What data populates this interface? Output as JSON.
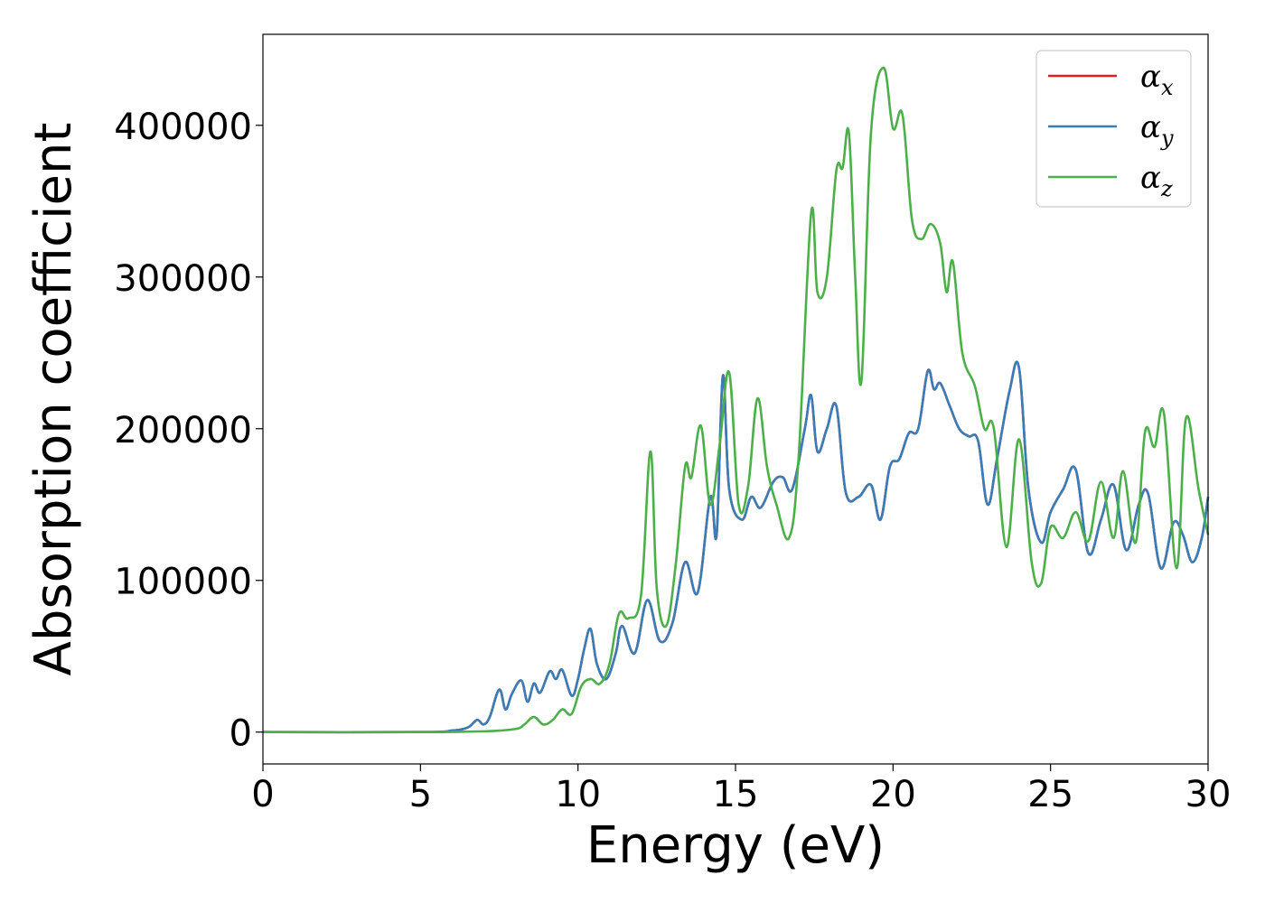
{
  "chart_data": {
    "type": "line",
    "xlabel": "Energy (eV)",
    "ylabel": "Absorption coefficient",
    "xlim": [
      0,
      30
    ],
    "ylim": [
      -21000,
      460000
    ],
    "xticks": [
      0,
      5,
      10,
      15,
      20,
      25,
      30
    ],
    "yticks": [
      0,
      100000,
      200000,
      300000,
      400000
    ],
    "grid": false,
    "legend_position": "top-right",
    "series": [
      {
        "name": "α",
        "subscript": "x",
        "color": "#e41a1c",
        "x": [
          0,
          5,
          6.0,
          6.5,
          6.8,
          7.0,
          7.2,
          7.5,
          7.7,
          7.9,
          8.2,
          8.4,
          8.6,
          8.8,
          9.1,
          9.3,
          9.5,
          9.8,
          10.0,
          10.2,
          10.4,
          10.6,
          10.9,
          11.2,
          11.4,
          11.8,
          12.2,
          12.6,
          13.0,
          13.4,
          13.8,
          14.2,
          14.4,
          14.6,
          14.8,
          15.2,
          15.5,
          15.8,
          16.2,
          16.5,
          16.8,
          17.2,
          17.4,
          17.6,
          17.9,
          18.2,
          18.5,
          18.9,
          19.3,
          19.6,
          19.9,
          20.2,
          20.5,
          20.8,
          21.1,
          21.3,
          21.5,
          21.8,
          22.1,
          22.4,
          22.7,
          23.0,
          23.3,
          23.7,
          24.0,
          24.3,
          24.7,
          25.0,
          25.4,
          25.8,
          26.2,
          26.6,
          27.0,
          27.4,
          27.8,
          28.1,
          28.5,
          28.9,
          29.2,
          29.5,
          29.8,
          30
        ],
        "y": [
          0,
          0,
          1000,
          3000,
          8000,
          5000,
          10000,
          28000,
          15000,
          25000,
          34000,
          20000,
          32000,
          26000,
          40000,
          35000,
          41000,
          24000,
          35000,
          55000,
          68000,
          45000,
          35000,
          52000,
          70000,
          52000,
          87000,
          60000,
          72000,
          112000,
          92000,
          155000,
          130000,
          235000,
          160000,
          140000,
          155000,
          148000,
          165000,
          168000,
          160000,
          200000,
          222000,
          185000,
          200000,
          215000,
          158000,
          155000,
          163000,
          140000,
          175000,
          180000,
          197000,
          200000,
          238000,
          226000,
          230000,
          215000,
          200000,
          195000,
          192000,
          150000,
          180000,
          225000,
          240000,
          160000,
          125000,
          145000,
          160000,
          173000,
          118000,
          140000,
          163000,
          120000,
          150000,
          157000,
          108000,
          138000,
          130000,
          112000,
          128000,
          155000
        ]
      },
      {
        "name": "α",
        "subscript": "y",
        "color": "#377eb8",
        "x": [
          0,
          5,
          6.0,
          6.5,
          6.8,
          7.0,
          7.2,
          7.5,
          7.7,
          7.9,
          8.2,
          8.4,
          8.6,
          8.8,
          9.1,
          9.3,
          9.5,
          9.8,
          10.0,
          10.2,
          10.4,
          10.6,
          10.9,
          11.2,
          11.4,
          11.8,
          12.2,
          12.6,
          13.0,
          13.4,
          13.8,
          14.2,
          14.4,
          14.6,
          14.8,
          15.2,
          15.5,
          15.8,
          16.2,
          16.5,
          16.8,
          17.2,
          17.4,
          17.6,
          17.9,
          18.2,
          18.5,
          18.9,
          19.3,
          19.6,
          19.9,
          20.2,
          20.5,
          20.8,
          21.1,
          21.3,
          21.5,
          21.8,
          22.1,
          22.4,
          22.7,
          23.0,
          23.3,
          23.7,
          24.0,
          24.3,
          24.7,
          25.0,
          25.4,
          25.8,
          26.2,
          26.6,
          27.0,
          27.4,
          27.8,
          28.1,
          28.5,
          28.9,
          29.2,
          29.5,
          29.8,
          30
        ],
        "y": [
          0,
          0,
          1000,
          3000,
          8000,
          5000,
          10000,
          28000,
          15000,
          25000,
          34000,
          20000,
          32000,
          26000,
          40000,
          35000,
          41000,
          24000,
          35000,
          55000,
          68000,
          45000,
          35000,
          52000,
          70000,
          52000,
          87000,
          60000,
          72000,
          112000,
          92000,
          155000,
          130000,
          235000,
          160000,
          140000,
          155000,
          148000,
          165000,
          168000,
          160000,
          200000,
          222000,
          185000,
          200000,
          215000,
          158000,
          155000,
          163000,
          140000,
          175000,
          180000,
          197000,
          200000,
          238000,
          226000,
          230000,
          215000,
          200000,
          195000,
          192000,
          150000,
          180000,
          225000,
          240000,
          160000,
          125000,
          145000,
          160000,
          173000,
          118000,
          140000,
          163000,
          120000,
          150000,
          157000,
          108000,
          138000,
          130000,
          112000,
          128000,
          155000
        ]
      },
      {
        "name": "α",
        "subscript": "z",
        "color": "#4daf4a",
        "x": [
          0,
          5,
          7.0,
          8.0,
          8.3,
          8.6,
          8.9,
          9.2,
          9.5,
          9.8,
          10.1,
          10.4,
          10.7,
          11.0,
          11.3,
          11.6,
          12.0,
          12.3,
          12.5,
          12.8,
          13.1,
          13.4,
          13.6,
          13.9,
          14.2,
          14.5,
          14.8,
          15.1,
          15.4,
          15.7,
          16.0,
          16.3,
          16.7,
          17.0,
          17.4,
          17.6,
          17.9,
          18.2,
          18.4,
          18.6,
          18.8,
          19.0,
          19.3,
          19.7,
          20.0,
          20.3,
          20.6,
          20.9,
          21.2,
          21.5,
          21.7,
          21.9,
          22.2,
          22.6,
          22.9,
          23.2,
          23.6,
          24.0,
          24.4,
          24.7,
          25.0,
          25.4,
          25.8,
          26.2,
          26.6,
          27.0,
          27.3,
          27.7,
          28.0,
          28.3,
          28.6,
          29.0,
          29.3,
          29.7,
          30
        ],
        "y": [
          0,
          0,
          500,
          2000,
          5000,
          10000,
          5000,
          8000,
          15000,
          12000,
          30000,
          35000,
          32000,
          45000,
          78000,
          75000,
          90000,
          185000,
          95000,
          70000,
          110000,
          175000,
          168000,
          202000,
          150000,
          190000,
          237000,
          150000,
          162000,
          220000,
          175000,
          150000,
          128000,
          180000,
          342000,
          290000,
          300000,
          370000,
          372000,
          395000,
          300000,
          232000,
          395000,
          438000,
          398000,
          407000,
          338000,
          325000,
          335000,
          322000,
          290000,
          310000,
          250000,
          228000,
          200000,
          200000,
          122000,
          193000,
          112000,
          98000,
          135000,
          128000,
          145000,
          126000,
          165000,
          128000,
          172000,
          125000,
          198000,
          188000,
          210000,
          108000,
          207000,
          160000,
          130000
        ]
      }
    ]
  }
}
